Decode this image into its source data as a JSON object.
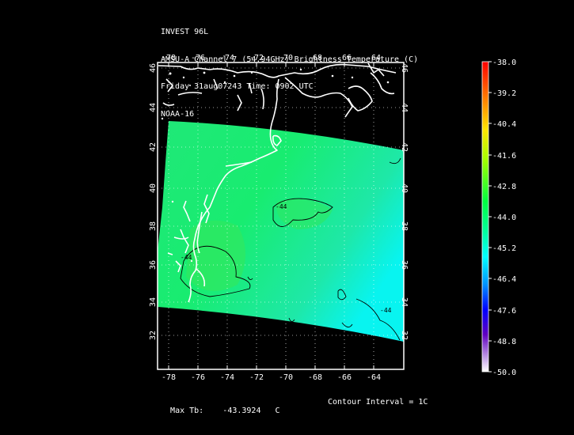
{
  "header": {
    "line1": "INVEST 96L",
    "line2": "AMSU-A Channel 7 (54.94GHz) Brightness Temperature (C)",
    "line3": "Friday 31aug07243 Time: 0902 UTC",
    "line4": "NOAA-16"
  },
  "map": {
    "lon_ticks": [
      "-78",
      "-76",
      "-74",
      "-72",
      "-70",
      "-68",
      "-66",
      "-64"
    ],
    "lat_ticks": [
      "46",
      "44",
      "42",
      "40",
      "38",
      "36",
      "34",
      "32"
    ],
    "contour_labels": [
      "-44",
      "-44",
      "-44"
    ],
    "colors": {
      "background": "#000000",
      "coast": "#ffffff",
      "field": "#1ee890",
      "contour": "#000000"
    }
  },
  "colorbar": {
    "ticks": [
      "-38.0",
      "-39.2",
      "-40.4",
      "-41.6",
      "-42.8",
      "-44.0",
      "-45.2",
      "-46.4",
      "-47.6",
      "-48.8",
      "-50.0"
    ]
  },
  "footer": {
    "max_label": "Max Tb:",
    "max_value": "-43.3924",
    "max_unit": "C",
    "contour_interval": "Contour Interval = 1C"
  }
}
